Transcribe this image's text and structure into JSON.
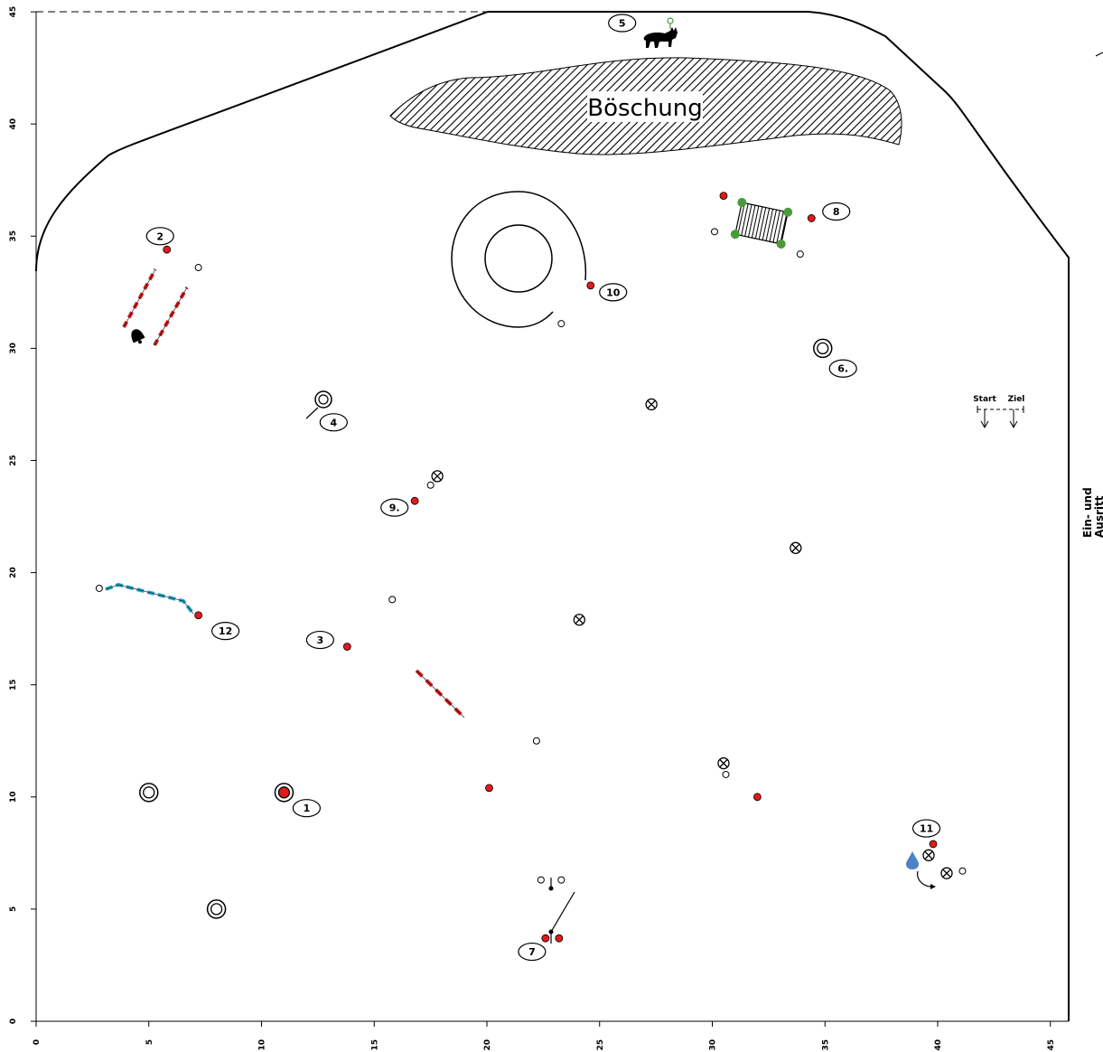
{
  "axes": {
    "x_ticks": [
      "0",
      "5",
      "10",
      "15",
      "20",
      "25",
      "30",
      "35",
      "40",
      "45"
    ],
    "y_ticks": [
      "0",
      "5",
      "10",
      "15",
      "20",
      "25",
      "30",
      "35",
      "40",
      "45"
    ]
  },
  "labels": {
    "embankment": "Böschung",
    "start": "Start",
    "finish": "Ziel",
    "entrance_line1": "Ein- und",
    "entrance_line2": "Ausritt"
  },
  "obstacles": [
    {
      "id": "1",
      "label": "1",
      "x": 12.0,
      "y": 9.5
    },
    {
      "id": "2",
      "label": "2",
      "x": 5.5,
      "y": 35.0
    },
    {
      "id": "3",
      "label": "3",
      "x": 12.6,
      "y": 17.0
    },
    {
      "id": "4",
      "label": "4",
      "x": 13.2,
      "y": 26.7
    },
    {
      "id": "5",
      "label": "5",
      "x": 26.0,
      "y": 44.5
    },
    {
      "id": "6",
      "label": "6.",
      "x": 35.8,
      "y": 29.1
    },
    {
      "id": "7",
      "label": "7",
      "x": 22.0,
      "y": 3.1
    },
    {
      "id": "8",
      "label": "8",
      "x": 35.5,
      "y": 36.1
    },
    {
      "id": "9",
      "label": "9.",
      "x": 15.9,
      "y": 22.9
    },
    {
      "id": "10",
      "label": "10",
      "x": 25.6,
      "y": 32.5
    },
    {
      "id": "11",
      "label": "11",
      "x": 39.5,
      "y": 8.6
    },
    {
      "id": "12",
      "label": "12",
      "x": 8.4,
      "y": 17.4
    }
  ],
  "colors": {
    "flag_red": "#e01a1a",
    "pole_red": "#d42020",
    "rail_blue": "#2aa6cc",
    "bush_green": "#4a9a3a",
    "drop_blue": "#4d82c4",
    "ink": "#000000"
  },
  "icons": [
    "bull-icon",
    "bell-icon",
    "water-drop-icon",
    "turn-arrow-icon"
  ]
}
